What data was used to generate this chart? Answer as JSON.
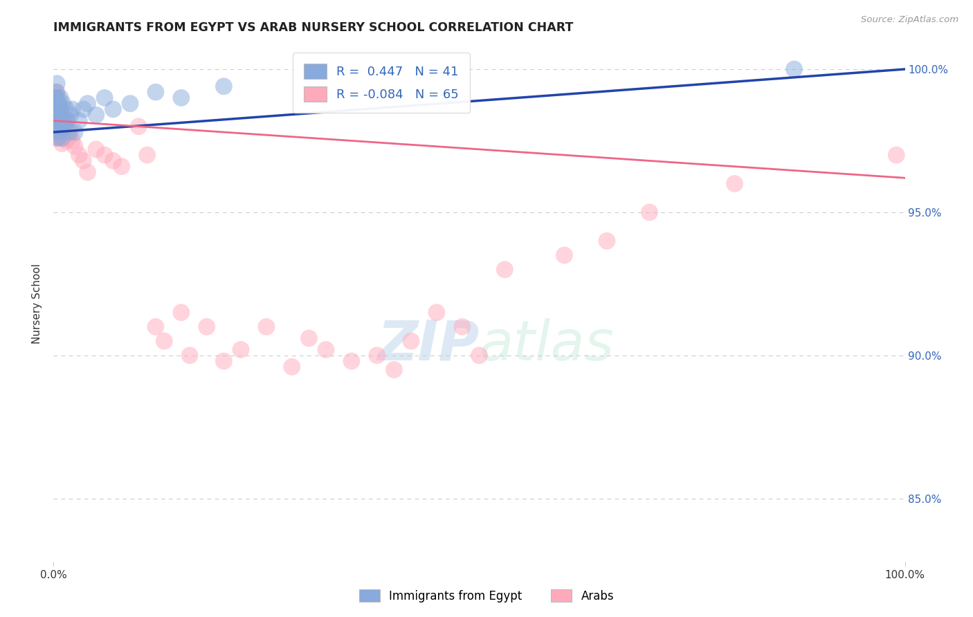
{
  "title": "IMMIGRANTS FROM EGYPT VS ARAB NURSERY SCHOOL CORRELATION CHART",
  "source": "Source: ZipAtlas.com",
  "ylabel": "Nursery School",
  "xlim": [
    0.0,
    1.0
  ],
  "ylim": [
    0.828,
    1.008
  ],
  "yticks": [
    0.85,
    0.9,
    0.95,
    1.0
  ],
  "ytick_labels": [
    "85.0%",
    "90.0%",
    "95.0%",
    "100.0%"
  ],
  "blue_R": 0.447,
  "blue_N": 41,
  "pink_R": -0.084,
  "pink_N": 65,
  "blue_color": "#88AADD",
  "pink_color": "#FFAABB",
  "blue_line_color": "#2244AA",
  "pink_line_color": "#EE6688",
  "legend_label_blue": "Immigrants from Egypt",
  "legend_label_pink": "Arabs",
  "background_color": "#FFFFFF",
  "blue_x": [
    0.001,
    0.002,
    0.002,
    0.003,
    0.003,
    0.003,
    0.004,
    0.004,
    0.004,
    0.005,
    0.005,
    0.005,
    0.006,
    0.006,
    0.007,
    0.007,
    0.008,
    0.008,
    0.009,
    0.01,
    0.01,
    0.011,
    0.012,
    0.013,
    0.015,
    0.016,
    0.018,
    0.02,
    0.022,
    0.025,
    0.03,
    0.035,
    0.04,
    0.05,
    0.06,
    0.07,
    0.09,
    0.12,
    0.15,
    0.2,
    0.87
  ],
  "blue_y": [
    0.98,
    0.985,
    0.99,
    0.982,
    0.986,
    0.992,
    0.984,
    0.988,
    0.995,
    0.976,
    0.982,
    0.99,
    0.978,
    0.986,
    0.98,
    0.987,
    0.982,
    0.99,
    0.984,
    0.976,
    0.982,
    0.988,
    0.982,
    0.98,
    0.986,
    0.982,
    0.978,
    0.984,
    0.986,
    0.978,
    0.982,
    0.986,
    0.988,
    0.984,
    0.99,
    0.986,
    0.988,
    0.992,
    0.99,
    0.994,
    1.0
  ],
  "pink_x": [
    0.001,
    0.001,
    0.002,
    0.002,
    0.002,
    0.003,
    0.003,
    0.003,
    0.004,
    0.004,
    0.004,
    0.005,
    0.005,
    0.006,
    0.006,
    0.007,
    0.007,
    0.008,
    0.008,
    0.009,
    0.01,
    0.01,
    0.011,
    0.012,
    0.013,
    0.014,
    0.015,
    0.016,
    0.018,
    0.02,
    0.022,
    0.025,
    0.03,
    0.035,
    0.04,
    0.05,
    0.06,
    0.07,
    0.08,
    0.1,
    0.11,
    0.12,
    0.13,
    0.15,
    0.16,
    0.18,
    0.2,
    0.22,
    0.25,
    0.28,
    0.3,
    0.32,
    0.35,
    0.38,
    0.4,
    0.42,
    0.45,
    0.48,
    0.5,
    0.53,
    0.6,
    0.65,
    0.7,
    0.8,
    0.99
  ],
  "pink_y": [
    0.98,
    0.985,
    0.978,
    0.982,
    0.99,
    0.976,
    0.982,
    0.988,
    0.98,
    0.985,
    0.992,
    0.976,
    0.98,
    0.982,
    0.988,
    0.976,
    0.983,
    0.98,
    0.986,
    0.978,
    0.974,
    0.981,
    0.976,
    0.978,
    0.976,
    0.98,
    0.975,
    0.982,
    0.976,
    0.978,
    0.975,
    0.973,
    0.97,
    0.968,
    0.964,
    0.972,
    0.97,
    0.968,
    0.966,
    0.98,
    0.97,
    0.91,
    0.905,
    0.915,
    0.9,
    0.91,
    0.898,
    0.902,
    0.91,
    0.896,
    0.906,
    0.902,
    0.898,
    0.9,
    0.895,
    0.905,
    0.915,
    0.91,
    0.9,
    0.93,
    0.935,
    0.94,
    0.95,
    0.96,
    0.97
  ],
  "blue_trendline_x": [
    0.0,
    1.0
  ],
  "blue_trendline_y": [
    0.978,
    1.0
  ],
  "pink_trendline_x": [
    0.0,
    1.0
  ],
  "pink_trendline_y": [
    0.982,
    0.962
  ]
}
